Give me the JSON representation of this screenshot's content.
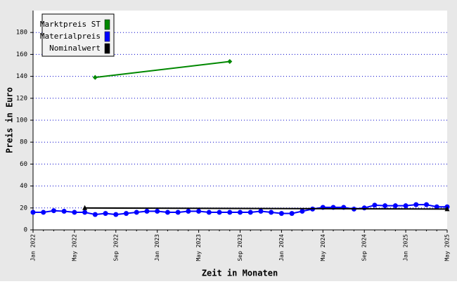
{
  "chart_data": {
    "type": "line",
    "xlabel": "Zeit in Monaten",
    "ylabel": "Preis in Euro",
    "categories": [
      "Jan 2022",
      null,
      null,
      null,
      "May 2022",
      null,
      null,
      null,
      "Sep 2022",
      null,
      null,
      null,
      "Jan 2023",
      null,
      null,
      null,
      "May 2023",
      null,
      null,
      null,
      "Sep 2023",
      null,
      null,
      null,
      "Jan 2024",
      null,
      null,
      null,
      "May 2024",
      null,
      null,
      null,
      "Sep 2024",
      null,
      null,
      null,
      "Jan 2025",
      null,
      null,
      null,
      "May 2025"
    ],
    "ylim": [
      0,
      200
    ],
    "yticks": [
      0,
      20,
      40,
      60,
      80,
      100,
      120,
      140,
      160,
      180
    ],
    "grid": true,
    "legend": "top-left",
    "series": [
      {
        "name": "Marktpreis ST",
        "color": "#008800",
        "marker": "diamond",
        "connect_nulls": true,
        "values": [
          null,
          null,
          null,
          null,
          null,
          null,
          139,
          null,
          null,
          null,
          null,
          null,
          null,
          null,
          null,
          null,
          null,
          null,
          null,
          153.5,
          null,
          null,
          null,
          null,
          null,
          null,
          null,
          null,
          null,
          null,
          null,
          null,
          null,
          null,
          null,
          null,
          null,
          null,
          null,
          null,
          null
        ]
      },
      {
        "name": "Materialpreis",
        "color": "#0000ff",
        "marker": "circle",
        "connect_nulls": false,
        "values": [
          16,
          16,
          17.5,
          17,
          16,
          16,
          14,
          15,
          14,
          15,
          16,
          17,
          17,
          16,
          16,
          17,
          17,
          16,
          16,
          16,
          16,
          16,
          17,
          16,
          15,
          15,
          17,
          19,
          20.5,
          20.5,
          20.5,
          19,
          20,
          22.5,
          22,
          22,
          22,
          23,
          23,
          21,
          21
        ]
      },
      {
        "name": "Nominalwert",
        "color": "#000000",
        "marker": "triangle",
        "connect_nulls": true,
        "values": [
          null,
          null,
          null,
          null,
          null,
          20,
          null,
          null,
          null,
          null,
          null,
          null,
          null,
          null,
          null,
          null,
          null,
          null,
          null,
          null,
          null,
          null,
          null,
          null,
          null,
          null,
          null,
          null,
          null,
          null,
          null,
          null,
          null,
          null,
          null,
          null,
          null,
          null,
          null,
          null,
          19
        ]
      }
    ]
  }
}
